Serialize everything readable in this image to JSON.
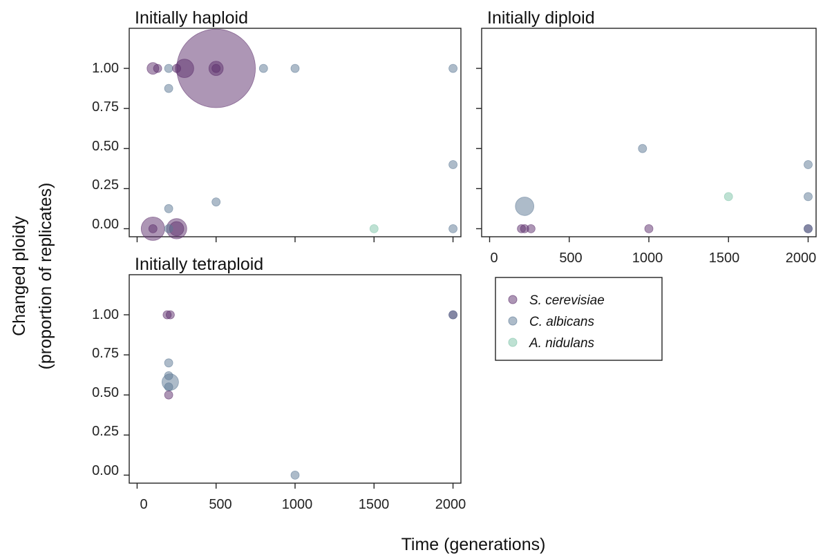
{
  "chart_data": {
    "type": "scatter",
    "xlabel": "Time (generations)",
    "ylabel_line1": "Changed ploidy",
    "ylabel_line2": "(proportion of replicates)",
    "xlim": [
      -50,
      2050
    ],
    "ylim": [
      -0.05,
      1.25
    ],
    "x_ticks": [
      "0",
      "500",
      "1000",
      "1500",
      "2000"
    ],
    "y_ticks": [
      "0.00",
      "0.25",
      "0.50",
      "0.75",
      "1.00"
    ],
    "size_note": "point area scales with number of replicate populations",
    "legend": {
      "position": "bottom-right",
      "entries": [
        {
          "label": "S. cerevisiae",
          "color": "#5c2d6b"
        },
        {
          "label": "C. albicans",
          "color": "#5b7894"
        },
        {
          "label": "A. nidulans",
          "color": "#7ec4a8"
        }
      ]
    },
    "panels": [
      {
        "title": "Initially haploid",
        "points": [
          {
            "species": "S. cerevisiae",
            "x": 100,
            "y": 1.0,
            "n": 2
          },
          {
            "species": "S. cerevisiae",
            "x": 130,
            "y": 1.0,
            "n": 1
          },
          {
            "species": "C. albicans",
            "x": 200,
            "y": 1.0,
            "n": 1
          },
          {
            "species": "C. albicans",
            "x": 200,
            "y": 0.875,
            "n": 1
          },
          {
            "species": "S. cerevisiae",
            "x": 250,
            "y": 1.0,
            "n": 1
          },
          {
            "species": "S. cerevisiae",
            "x": 300,
            "y": 1.0,
            "n": 5
          },
          {
            "species": "S. cerevisiae",
            "x": 500,
            "y": 1.0,
            "n": 90
          },
          {
            "species": "S. cerevisiae",
            "x": 500,
            "y": 1.0,
            "n": 3
          },
          {
            "species": "S. cerevisiae",
            "x": 500,
            "y": 1.0,
            "n": 1
          },
          {
            "species": "C. albicans",
            "x": 800,
            "y": 1.0,
            "n": 1
          },
          {
            "species": "C. albicans",
            "x": 1000,
            "y": 1.0,
            "n": 1
          },
          {
            "species": "C. albicans",
            "x": 2000,
            "y": 1.0,
            "n": 1
          },
          {
            "species": "C. albicans",
            "x": 200,
            "y": 0.125,
            "n": 1
          },
          {
            "species": "C. albicans",
            "x": 500,
            "y": 0.167,
            "n": 1
          },
          {
            "species": "C. albicans",
            "x": 2000,
            "y": 0.4,
            "n": 1
          },
          {
            "species": "S. cerevisiae",
            "x": 100,
            "y": 0.0,
            "n": 8
          },
          {
            "species": "S. cerevisiae",
            "x": 100,
            "y": 0.0,
            "n": 1
          },
          {
            "species": "C. albicans",
            "x": 200,
            "y": 0.0,
            "n": 1
          },
          {
            "species": "S. cerevisiae",
            "x": 250,
            "y": 0.0,
            "n": 6
          },
          {
            "species": "S. cerevisiae",
            "x": 250,
            "y": 0.0,
            "n": 3
          },
          {
            "species": "A. nidulans",
            "x": 1500,
            "y": 0.0,
            "n": 1
          },
          {
            "species": "C. albicans",
            "x": 2000,
            "y": 0.0,
            "n": 1
          }
        ]
      },
      {
        "title": "Initially diploid",
        "points": [
          {
            "species": "C. albicans",
            "x": 960,
            "y": 0.5,
            "n": 1
          },
          {
            "species": "C. albicans",
            "x": 2000,
            "y": 0.4,
            "n": 1
          },
          {
            "species": "A. nidulans",
            "x": 1500,
            "y": 0.2,
            "n": 1
          },
          {
            "species": "C. albicans",
            "x": 2000,
            "y": 0.2,
            "n": 1
          },
          {
            "species": "C. albicans",
            "x": 220,
            "y": 0.14,
            "n": 5
          },
          {
            "species": "S. cerevisiae",
            "x": 200,
            "y": 0.0,
            "n": 1
          },
          {
            "species": "S. cerevisiae",
            "x": 220,
            "y": 0.0,
            "n": 1
          },
          {
            "species": "S. cerevisiae",
            "x": 260,
            "y": 0.0,
            "n": 1
          },
          {
            "species": "S. cerevisiae",
            "x": 1000,
            "y": 0.0,
            "n": 1
          },
          {
            "species": "S. cerevisiae",
            "x": 2000,
            "y": 0.0,
            "n": 1
          },
          {
            "species": "C. albicans",
            "x": 2000,
            "y": 0.0,
            "n": 1
          }
        ]
      },
      {
        "title": "Initially tetraploid",
        "points": [
          {
            "species": "S. cerevisiae",
            "x": 190,
            "y": 1.0,
            "n": 1
          },
          {
            "species": "S. cerevisiae",
            "x": 210,
            "y": 1.0,
            "n": 1
          },
          {
            "species": "S. cerevisiae",
            "x": 2000,
            "y": 1.0,
            "n": 1
          },
          {
            "species": "C. albicans",
            "x": 2000,
            "y": 1.0,
            "n": 1
          },
          {
            "species": "C. albicans",
            "x": 200,
            "y": 0.7,
            "n": 1
          },
          {
            "species": "C. albicans",
            "x": 200,
            "y": 0.62,
            "n": 1
          },
          {
            "species": "C. albicans",
            "x": 210,
            "y": 0.58,
            "n": 4
          },
          {
            "species": "C. albicans",
            "x": 200,
            "y": 0.55,
            "n": 1
          },
          {
            "species": "S. cerevisiae",
            "x": 200,
            "y": 0.5,
            "n": 1
          },
          {
            "species": "C. albicans",
            "x": 1000,
            "y": 0.0,
            "n": 1
          }
        ]
      }
    ]
  }
}
